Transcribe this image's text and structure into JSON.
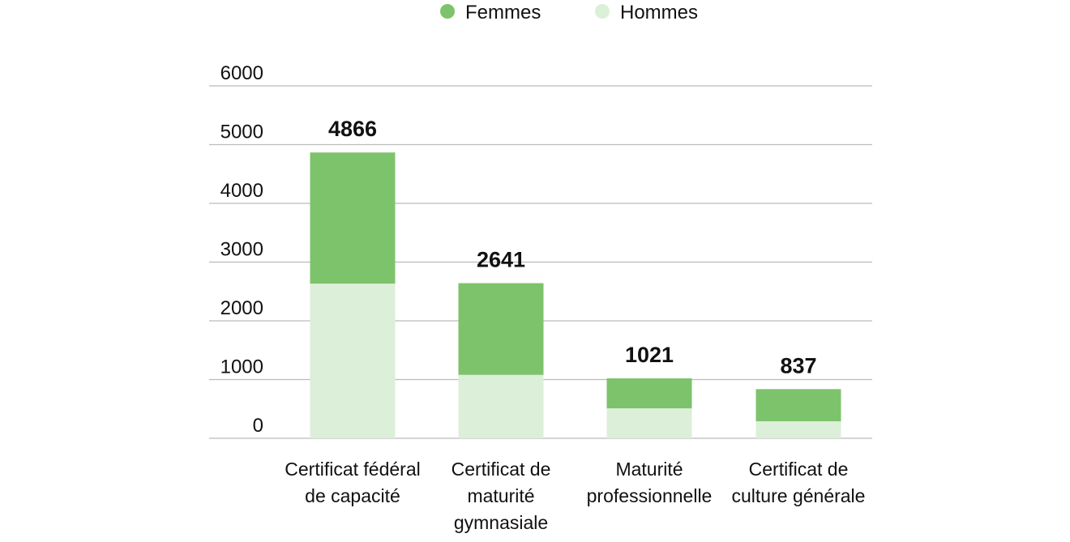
{
  "chart_data": {
    "type": "stacked-bar",
    "categories": [
      "Certificat fédéral de capacité",
      "Certificat de maturité gymnasiale",
      "Maturité professionnelle",
      "Certificat de culture générale"
    ],
    "series": [
      {
        "name": "Hommes",
        "color": "#dcefd8",
        "values": [
          2634,
          1080,
          510,
          290
        ]
      },
      {
        "name": "Femmes",
        "color": "#7dc36b",
        "values": [
          2232,
          1561,
          511,
          547
        ]
      }
    ],
    "totals": [
      4866,
      2641,
      1021,
      837
    ],
    "ylim": [
      0,
      6000
    ],
    "yticks": [
      0,
      1000,
      2000,
      3000,
      4000,
      5000,
      6000
    ],
    "grid": true
  }
}
